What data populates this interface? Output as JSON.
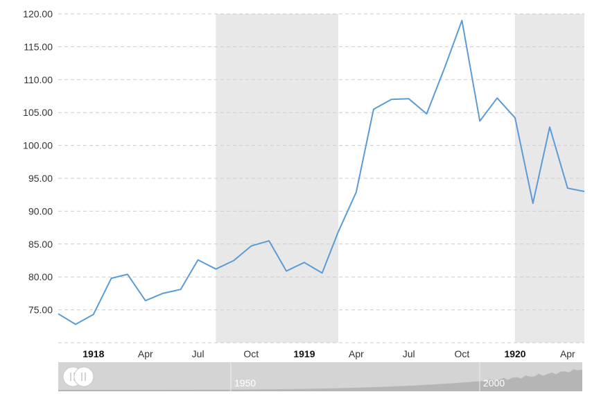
{
  "chart_data": {
    "type": "line",
    "title": "",
    "xlabel": "",
    "ylabel": "",
    "ylim": [
      70,
      120
    ],
    "xlim": [
      "1917-11-01",
      "1920-04-30"
    ],
    "y_ticks": [
      "75.00",
      "80.00",
      "85.00",
      "90.00",
      "95.00",
      "100.00",
      "105.00",
      "110.00",
      "115.00",
      "120.00"
    ],
    "x_ticks": [
      {
        "label": "1918",
        "date": "1918-01-01",
        "bold": true
      },
      {
        "label": "Apr",
        "date": "1918-04-01",
        "bold": false
      },
      {
        "label": "Jul",
        "date": "1918-07-01",
        "bold": false
      },
      {
        "label": "Oct",
        "date": "1918-10-01",
        "bold": false
      },
      {
        "label": "1919",
        "date": "1919-01-01",
        "bold": true
      },
      {
        "label": "Apr",
        "date": "1919-04-01",
        "bold": false
      },
      {
        "label": "Jul",
        "date": "1919-07-01",
        "bold": false
      },
      {
        "label": "Oct",
        "date": "1919-10-01",
        "bold": false
      },
      {
        "label": "1920",
        "date": "1920-01-01",
        "bold": true
      },
      {
        "label": "Apr",
        "date": "1920-04-01",
        "bold": false
      }
    ],
    "grid": true,
    "shaded_periods": [
      {
        "start": "1918-08-01",
        "end": "1919-03-01"
      },
      {
        "start": "1920-01-01",
        "end": "1920-04-30"
      }
    ],
    "line_color": "#5b9bd5",
    "series": [
      {
        "x": [
          "1917-11-01",
          "1917-12-01",
          "1918-01-01",
          "1918-02-01",
          "1918-03-01",
          "1918-04-01",
          "1918-05-01",
          "1918-06-01",
          "1918-07-01",
          "1918-08-01",
          "1918-09-01",
          "1918-10-01",
          "1918-11-01",
          "1918-12-01",
          "1919-01-01",
          "1919-02-01",
          "1919-03-01",
          "1919-04-01",
          "1919-05-01",
          "1919-06-01",
          "1919-07-01",
          "1919-08-01",
          "1919-09-01",
          "1919-10-01",
          "1919-11-01",
          "1919-12-01",
          "1920-01-01",
          "1920-02-01",
          "1920-03-01",
          "1920-04-01",
          "1920-04-30"
        ],
        "y": [
          74.4,
          72.8,
          74.3,
          79.8,
          80.4,
          76.4,
          77.5,
          78.1,
          82.6,
          81.2,
          82.5,
          84.7,
          85.5,
          80.9,
          82.2,
          80.6,
          86.9,
          92.9,
          105.5,
          107.0,
          107.1,
          104.8,
          111.8,
          119.0,
          103.7,
          107.2,
          104.2,
          91.2,
          102.8,
          93.5,
          93.0
        ]
      }
    ]
  },
  "navigator": {
    "labels": [
      "1950",
      "2000"
    ]
  },
  "colors": {
    "shade": "#e8e8e8",
    "navigator_bg": "#d4d4d4",
    "navigator_area": "#b5b5b5",
    "handle_fill": "#ffffff"
  }
}
